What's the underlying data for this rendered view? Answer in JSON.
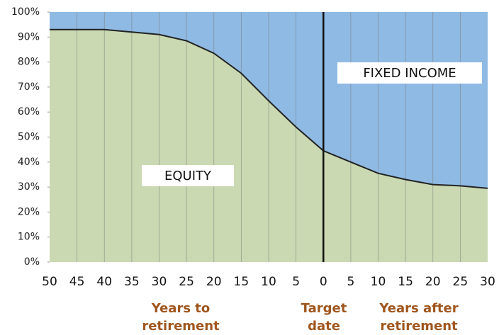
{
  "chart_data": {
    "type": "area",
    "stacked": true,
    "categories": [
      "50",
      "45",
      "40",
      "35",
      "30",
      "25",
      "20",
      "15",
      "10",
      "5",
      "0",
      "5",
      "10",
      "15",
      "20",
      "25",
      "30"
    ],
    "series": [
      {
        "name": "EQUITY",
        "color": "#cad9b2",
        "values": [
          93,
          93,
          93,
          92,
          91,
          88.5,
          83.5,
          75.5,
          64.5,
          54,
          44.5,
          40,
          35.5,
          33,
          31,
          30.5,
          29.5
        ]
      },
      {
        "name": "FIXED INCOME",
        "color": "#8fbae3",
        "values": [
          7,
          7,
          7,
          8,
          9,
          11.5,
          16.5,
          24.5,
          35.5,
          46,
          55.5,
          60,
          64.5,
          67,
          69,
          69.5,
          70.5
        ]
      }
    ],
    "ylim": [
      0,
      100
    ],
    "yticks": [
      {
        "value": 0,
        "label": "0%"
      },
      {
        "value": 10,
        "label": "10%"
      },
      {
        "value": 20,
        "label": "20%"
      },
      {
        "value": 30,
        "label": "30%"
      },
      {
        "value": 40,
        "label": "40%"
      },
      {
        "value": 50,
        "label": "50%"
      },
      {
        "value": 60,
        "label": "60%"
      },
      {
        "value": 70,
        "label": "70%"
      },
      {
        "value": 80,
        "label": "80%"
      },
      {
        "value": 90,
        "label": "90%"
      },
      {
        "value": 100,
        "label": "100%"
      }
    ],
    "annotations": [
      [
        "Years to",
        "retirement"
      ],
      [
        "Target",
        "date"
      ],
      [
        "Years after",
        "retirement"
      ]
    ]
  }
}
